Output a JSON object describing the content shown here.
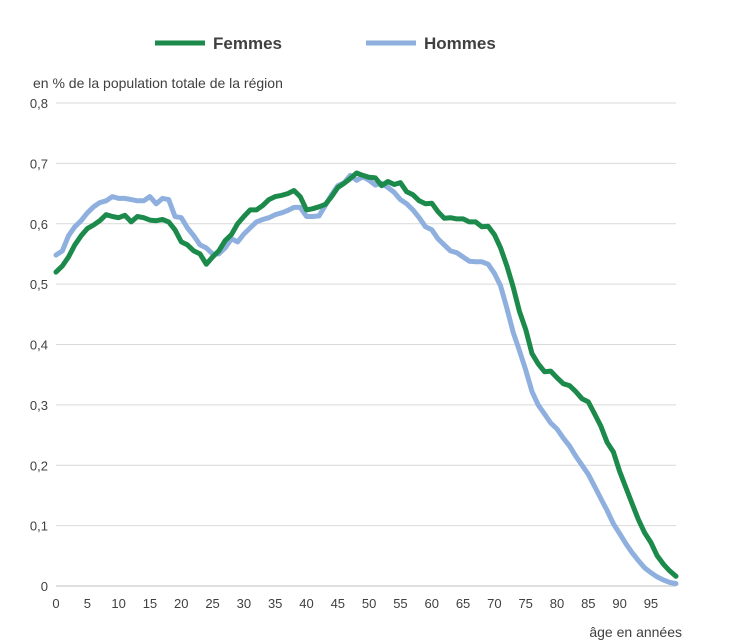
{
  "chart_data": {
    "type": "line",
    "title": "",
    "ylabel": "en % de la population totale de la région",
    "xlabel": "âge en années",
    "xlim": [
      0,
      99
    ],
    "ylim": [
      0,
      0.8
    ],
    "x_ticks": [
      0,
      5,
      10,
      15,
      20,
      25,
      30,
      35,
      40,
      45,
      50,
      55,
      60,
      65,
      70,
      75,
      80,
      85,
      90,
      95
    ],
    "y_ticks": [
      0,
      0.1,
      0.2,
      0.3,
      0.4,
      0.5,
      0.6,
      0.7,
      0.8
    ],
    "y_tick_labels": [
      "0",
      "0,1",
      "0,2",
      "0,3",
      "0,4",
      "0,5",
      "0,6",
      "0,7",
      "0,8"
    ],
    "grid": "horizontal",
    "legend_position": "top",
    "series": [
      {
        "name": "Femmes",
        "color": "#1b8a4a",
        "points": [
          [
            0,
            0.52
          ],
          [
            1,
            0.53
          ],
          [
            2,
            0.545
          ],
          [
            3,
            0.565
          ],
          [
            4,
            0.58
          ],
          [
            5,
            0.592
          ],
          [
            6,
            0.598
          ],
          [
            7,
            0.605
          ],
          [
            8,
            0.615
          ],
          [
            9,
            0.612
          ],
          [
            10,
            0.61
          ],
          [
            11,
            0.614
          ],
          [
            12,
            0.603
          ],
          [
            13,
            0.612
          ],
          [
            14,
            0.61
          ],
          [
            15,
            0.606
          ],
          [
            16,
            0.605
          ],
          [
            17,
            0.607
          ],
          [
            18,
            0.603
          ],
          [
            19,
            0.59
          ],
          [
            20,
            0.57
          ],
          [
            21,
            0.565
          ],
          [
            22,
            0.555
          ],
          [
            23,
            0.55
          ],
          [
            24,
            0.533
          ],
          [
            25,
            0.545
          ],
          [
            26,
            0.555
          ],
          [
            27,
            0.572
          ],
          [
            28,
            0.582
          ],
          [
            29,
            0.6
          ],
          [
            30,
            0.612
          ],
          [
            31,
            0.623
          ],
          [
            32,
            0.623
          ],
          [
            33,
            0.63
          ],
          [
            34,
            0.64
          ],
          [
            35,
            0.645
          ],
          [
            36,
            0.647
          ],
          [
            37,
            0.65
          ],
          [
            38,
            0.655
          ],
          [
            39,
            0.645
          ],
          [
            40,
            0.623
          ],
          [
            41,
            0.625
          ],
          [
            42,
            0.628
          ],
          [
            43,
            0.632
          ],
          [
            44,
            0.645
          ],
          [
            45,
            0.66
          ],
          [
            46,
            0.667
          ],
          [
            47,
            0.675
          ],
          [
            48,
            0.684
          ],
          [
            49,
            0.68
          ],
          [
            50,
            0.677
          ],
          [
            51,
            0.676
          ],
          [
            52,
            0.663
          ],
          [
            53,
            0.67
          ],
          [
            54,
            0.665
          ],
          [
            55,
            0.668
          ],
          [
            56,
            0.653
          ],
          [
            57,
            0.648
          ],
          [
            58,
            0.638
          ],
          [
            59,
            0.633
          ],
          [
            60,
            0.634
          ],
          [
            61,
            0.62
          ],
          [
            62,
            0.609
          ],
          [
            63,
            0.61
          ],
          [
            64,
            0.608
          ],
          [
            65,
            0.608
          ],
          [
            66,
            0.603
          ],
          [
            67,
            0.603
          ],
          [
            68,
            0.595
          ],
          [
            69,
            0.596
          ],
          [
            70,
            0.582
          ],
          [
            71,
            0.56
          ],
          [
            72,
            0.53
          ],
          [
            73,
            0.495
          ],
          [
            74,
            0.455
          ],
          [
            75,
            0.425
          ],
          [
            76,
            0.385
          ],
          [
            77,
            0.368
          ],
          [
            78,
            0.355
          ],
          [
            79,
            0.356
          ],
          [
            80,
            0.345
          ],
          [
            81,
            0.335
          ],
          [
            82,
            0.332
          ],
          [
            83,
            0.322
          ],
          [
            84,
            0.31
          ],
          [
            85,
            0.305
          ],
          [
            86,
            0.285
          ],
          [
            87,
            0.265
          ],
          [
            88,
            0.238
          ],
          [
            89,
            0.222
          ],
          [
            90,
            0.19
          ],
          [
            91,
            0.163
          ],
          [
            92,
            0.136
          ],
          [
            93,
            0.11
          ],
          [
            94,
            0.088
          ],
          [
            95,
            0.072
          ],
          [
            96,
            0.05
          ],
          [
            97,
            0.036
          ],
          [
            98,
            0.025
          ],
          [
            99,
            0.016
          ]
        ]
      },
      {
        "name": "Hommes",
        "color": "#8fb0de",
        "points": [
          [
            0,
            0.548
          ],
          [
            1,
            0.555
          ],
          [
            2,
            0.58
          ],
          [
            3,
            0.595
          ],
          [
            4,
            0.605
          ],
          [
            5,
            0.618
          ],
          [
            6,
            0.628
          ],
          [
            7,
            0.635
          ],
          [
            8,
            0.638
          ],
          [
            9,
            0.645
          ],
          [
            10,
            0.642
          ],
          [
            11,
            0.642
          ],
          [
            12,
            0.64
          ],
          [
            13,
            0.638
          ],
          [
            14,
            0.638
          ],
          [
            15,
            0.645
          ],
          [
            16,
            0.633
          ],
          [
            17,
            0.642
          ],
          [
            18,
            0.64
          ],
          [
            19,
            0.612
          ],
          [
            20,
            0.61
          ],
          [
            21,
            0.593
          ],
          [
            22,
            0.58
          ],
          [
            23,
            0.565
          ],
          [
            24,
            0.56
          ],
          [
            25,
            0.55
          ],
          [
            26,
            0.55
          ],
          [
            27,
            0.56
          ],
          [
            28,
            0.575
          ],
          [
            29,
            0.57
          ],
          [
            30,
            0.583
          ],
          [
            31,
            0.593
          ],
          [
            32,
            0.603
          ],
          [
            33,
            0.607
          ],
          [
            34,
            0.61
          ],
          [
            35,
            0.615
          ],
          [
            36,
            0.618
          ],
          [
            37,
            0.622
          ],
          [
            38,
            0.627
          ],
          [
            39,
            0.627
          ],
          [
            40,
            0.612
          ],
          [
            41,
            0.612
          ],
          [
            42,
            0.613
          ],
          [
            43,
            0.63
          ],
          [
            44,
            0.648
          ],
          [
            45,
            0.663
          ],
          [
            46,
            0.668
          ],
          [
            47,
            0.68
          ],
          [
            48,
            0.672
          ],
          [
            49,
            0.678
          ],
          [
            50,
            0.672
          ],
          [
            51,
            0.664
          ],
          [
            52,
            0.667
          ],
          [
            53,
            0.66
          ],
          [
            54,
            0.652
          ],
          [
            55,
            0.64
          ],
          [
            56,
            0.633
          ],
          [
            57,
            0.623
          ],
          [
            58,
            0.61
          ],
          [
            59,
            0.595
          ],
          [
            60,
            0.59
          ],
          [
            61,
            0.575
          ],
          [
            62,
            0.565
          ],
          [
            63,
            0.555
          ],
          [
            64,
            0.552
          ],
          [
            65,
            0.545
          ],
          [
            66,
            0.538
          ],
          [
            67,
            0.537
          ],
          [
            68,
            0.537
          ],
          [
            69,
            0.533
          ],
          [
            70,
            0.518
          ],
          [
            71,
            0.497
          ],
          [
            72,
            0.46
          ],
          [
            73,
            0.42
          ],
          [
            74,
            0.39
          ],
          [
            75,
            0.358
          ],
          [
            76,
            0.322
          ],
          [
            77,
            0.3
          ],
          [
            78,
            0.285
          ],
          [
            79,
            0.27
          ],
          [
            80,
            0.26
          ],
          [
            81,
            0.245
          ],
          [
            82,
            0.232
          ],
          [
            83,
            0.215
          ],
          [
            84,
            0.2
          ],
          [
            85,
            0.185
          ],
          [
            86,
            0.165
          ],
          [
            87,
            0.145
          ],
          [
            88,
            0.125
          ],
          [
            89,
            0.103
          ],
          [
            90,
            0.087
          ],
          [
            91,
            0.07
          ],
          [
            92,
            0.055
          ],
          [
            93,
            0.042
          ],
          [
            94,
            0.03
          ],
          [
            95,
            0.022
          ],
          [
            96,
            0.015
          ],
          [
            97,
            0.01
          ],
          [
            98,
            0.006
          ],
          [
            99,
            0.004
          ]
        ]
      }
    ]
  }
}
